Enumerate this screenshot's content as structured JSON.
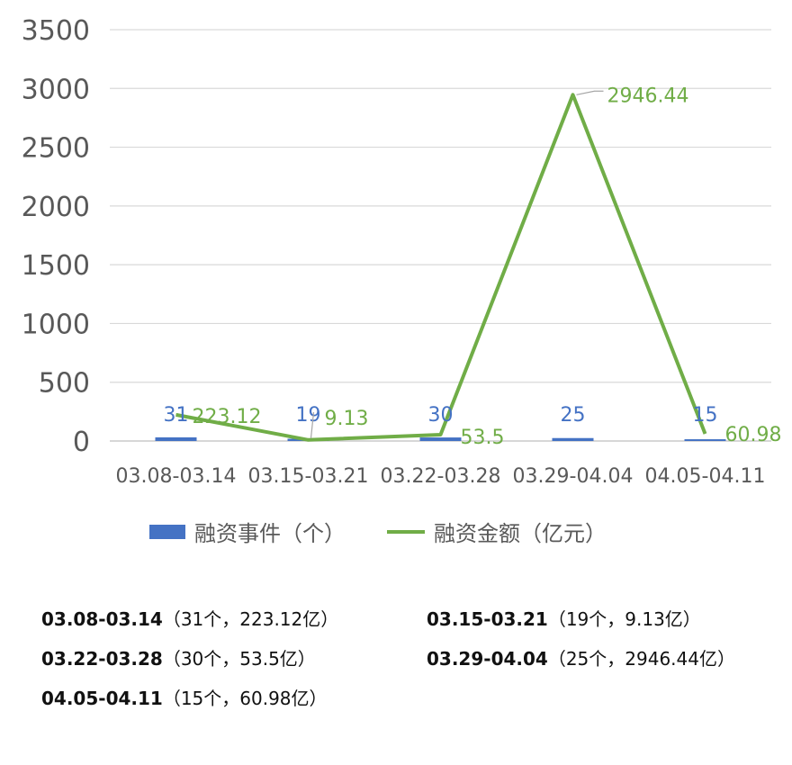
{
  "chart_data": {
    "type": "bar+line",
    "categories": [
      "03.08-03.14",
      "03.15-03.21",
      "03.22-03.28",
      "03.29-04.04",
      "04.05-04.11"
    ],
    "ylim": [
      0,
      3500
    ],
    "yticks": [
      "0",
      "500",
      "1000",
      "1500",
      "2000",
      "2500",
      "3000",
      "3500"
    ],
    "grid": true,
    "legend_position": "bottom",
    "series": [
      {
        "name": "融资事件（个）",
        "type": "bar",
        "color": "#4472c4",
        "values": [
          31,
          19,
          30,
          25,
          15
        ],
        "labels": [
          "31",
          "19",
          "30",
          "25",
          "15"
        ]
      },
      {
        "name": "融资金额（亿元）",
        "type": "line",
        "color": "#70ad47",
        "values": [
          223.12,
          9.13,
          53.5,
          2946.44,
          60.98
        ],
        "labels": [
          "223.12",
          "9.13",
          "53.5",
          "2946.44",
          "60.98"
        ]
      }
    ]
  },
  "notes": [
    {
      "date": "03.08-03.14",
      "detail": "（31个，223.12亿）"
    },
    {
      "date": "03.15-03.21",
      "detail": "（19个，9.13亿）"
    },
    {
      "date": "03.22-03.28",
      "detail": "（30个，53.5亿）"
    },
    {
      "date": "03.29-04.04",
      "detail": "（25个，2946.44亿）"
    },
    {
      "date": "04.05-04.11",
      "detail": "（15个，60.98亿）"
    }
  ]
}
